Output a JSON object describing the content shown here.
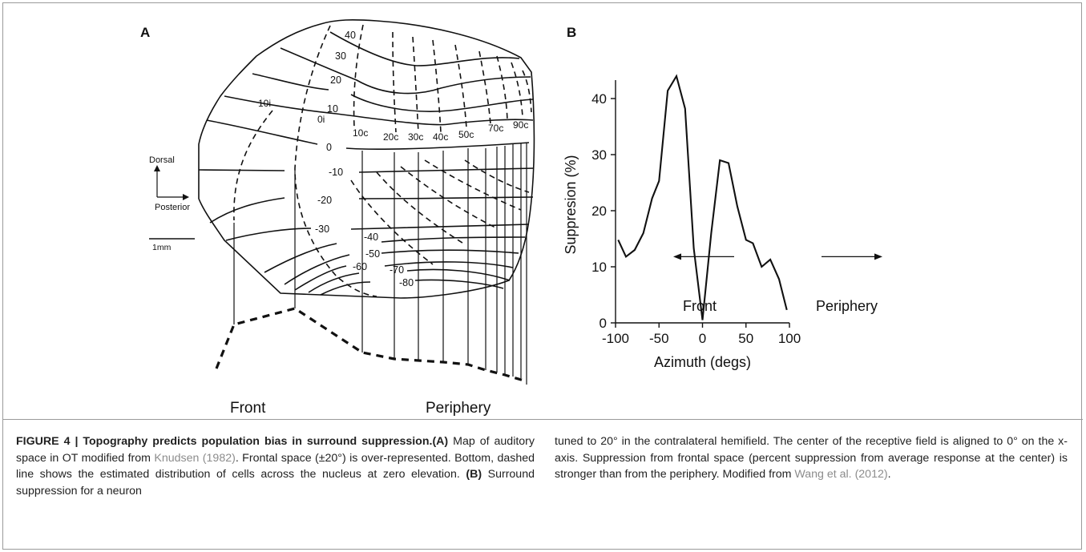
{
  "panel_a": {
    "letter": "A",
    "elevation_labels": [
      "40",
      "30",
      "20",
      "10",
      "0",
      "-10",
      "-20",
      "-30",
      "-40",
      "-50",
      "-60",
      "-70",
      "-80"
    ],
    "azimuth_labels": [
      "10i",
      "0i",
      "10c",
      "20c",
      "30c",
      "40c",
      "50c",
      "70c",
      "90c"
    ],
    "compass": {
      "dorsal": "Dorsal",
      "posterior": "Posterior"
    },
    "scale_bar": "1mm",
    "bottom_labels": {
      "front": "Front",
      "periphery": "Periphery"
    }
  },
  "panel_b": {
    "letter": "B",
    "arrow_labels": {
      "front": "Front",
      "periphery": "Periphery"
    }
  },
  "chart_data": {
    "type": "line",
    "xlabel": "Azimuth (degs)",
    "ylabel": "Suppresion (%)",
    "xlim": [
      -100,
      100
    ],
    "ylim": [
      0,
      45
    ],
    "xticks": [
      -100,
      -50,
      0,
      50,
      100
    ],
    "yticks": [
      0,
      10,
      20,
      30,
      40
    ],
    "grid": false,
    "series": [
      {
        "x": [
          -97,
          -88,
          -78,
          -68,
          -58,
          -50,
          -40,
          -30,
          -20,
          -10,
          0,
          10,
          20,
          30,
          40,
          50,
          58,
          68,
          78,
          88,
          97
        ],
        "y": [
          14.8,
          11.8,
          13,
          16,
          22.2,
          25.3,
          41.4,
          44,
          38.2,
          13.3,
          0.5,
          16,
          29,
          28.5,
          20.8,
          14.8,
          14.2,
          10,
          11.3,
          7.8,
          2.3
        ]
      }
    ]
  },
  "caption": {
    "title": "FIGURE 4 | Topography predicts population bias in surround suppression.",
    "a_label": "(A)",
    "a_text_1": " Map of auditory space in OT modified from ",
    "a_ref": "Knudsen (1982)",
    "a_text_2": ". Frontal space (±20°) is over-represented. Bottom, dashed line shows the estimated distribution of cells across the nucleus at zero elevation. ",
    "b_label": "(B)",
    "b_text_1": " Surround suppression for a neuron",
    "right_text": "tuned to 20° in the contralateral hemifield. The center of the receptive field is aligned to 0° on the x-axis. Suppression from frontal space (percent suppression from average response at the center) is stronger than from the periphery. Modified from ",
    "right_ref": "Wang et al. (2012)",
    "right_end": "."
  }
}
